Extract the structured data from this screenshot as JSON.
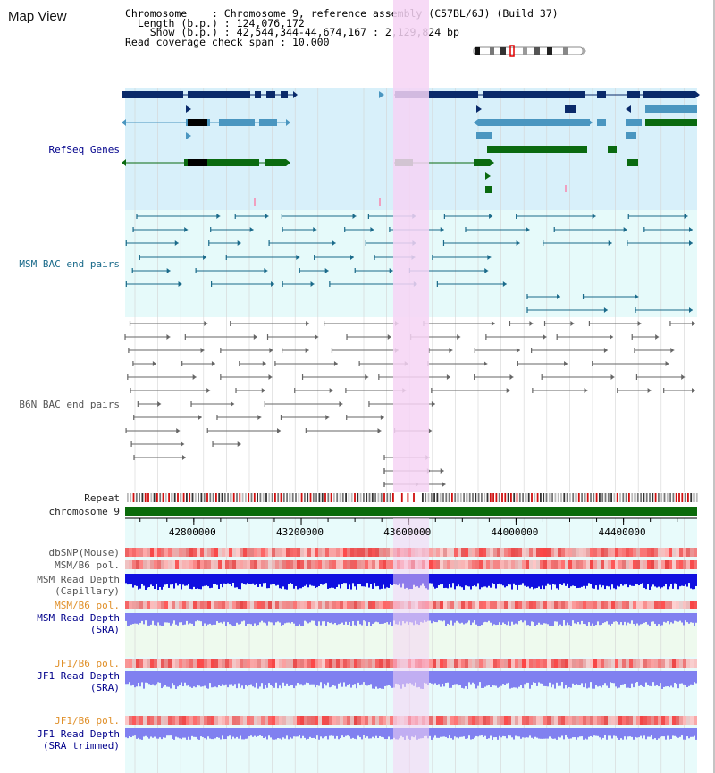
{
  "window": {
    "title": "Map View"
  },
  "info": {
    "chromosome_label": "Chromosome    ",
    "chromosome_value": "Chromosome 9, reference assembly (C57BL/6J) (Build 37)",
    "length_label": "Length (b.p.)",
    "length_value": "124,076,172",
    "show_label": "Show (b.p.)",
    "show_value": "42,544,344-44,674,167 : 2,129,824 bp",
    "coverage_label": "Read coverage check span",
    "coverage_value": "10,000"
  },
  "tracks": {
    "refseq": "RefSeq Genes",
    "msm_bac": "MSM BAC end pairs",
    "b6n_bac": "B6N BAC end pairs",
    "repeat": "Repeat",
    "chromosome": "chromosome 9",
    "dbsnp": "dbSNP(Mouse)",
    "msm_b6_pol_1": "MSM/B6 pol.",
    "msm_depth_cap_1": "MSM Read Depth",
    "msm_depth_cap_2": "(Capillary)",
    "msm_b6_pol_2": "MSM/B6 pol.",
    "msm_depth_sra_1": "MSM Read Depth",
    "msm_depth_sra_2": "(SRA)",
    "jf1_b6_pol_1": "JF1/B6 pol.",
    "jf1_depth_sra_1": "JF1 Read Depth",
    "jf1_depth_sra_2": "(SRA)",
    "jf1_b6_pol_2": "JF1/B6 pol.",
    "jf1_depth_trim_1": "JF1 Read Depth",
    "jf1_depth_trim_2": "(SRA trimmed)"
  },
  "ruler": {
    "ticks": [
      "42800000",
      "43200000",
      "43600000",
      "44000000",
      "44400000"
    ],
    "tick_values": [
      42800000,
      43200000,
      43600000,
      44000000,
      44400000
    ],
    "range": [
      42544344,
      44674167
    ]
  },
  "highlight": {
    "start": 43550000,
    "end": 43680000
  },
  "colors": {
    "refseq_bg": "#d8f0fa",
    "bac_bg": "#e6fafa",
    "highlight": "#f6d4f4",
    "navy_gene": "#0a2a6a",
    "blue_gene": "#4a96c0",
    "green_gene": "#0a6a10",
    "teal_bac": "#1a6a8a",
    "grey_bac": "#666666",
    "chrom": "#0a6a0a",
    "depth_cap": "#1010e0",
    "depth_sra": "#8080f0"
  }
}
